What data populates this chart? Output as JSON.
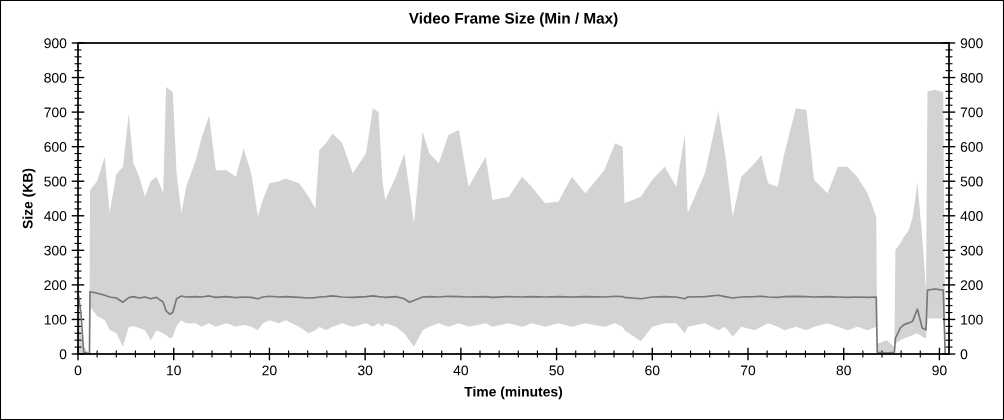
{
  "chart_data": {
    "type": "line",
    "title": "Video Frame Size (Min / Max)",
    "xlabel": "Time (minutes)",
    "ylabel": "Size (KB)",
    "x": [
      0.0,
      0.3,
      0.6,
      1.2,
      1.25,
      2.0,
      2.8,
      3.3,
      4.0,
      4.7,
      5.3,
      5.8,
      6.4,
      7.0,
      7.6,
      8.2,
      8.9,
      9.2,
      9.6,
      9.9,
      10.3,
      10.8,
      11.3,
      12.3,
      12.9,
      13.7,
      14.4,
      15.5,
      16.5,
      17.3,
      18.1,
      18.8,
      19.3,
      20.0,
      21.0,
      21.7,
      23.1,
      24.1,
      24.8,
      25.2,
      25.9,
      26.6,
      27.6,
      28.7,
      30.1,
      30.8,
      31.4,
      31.8,
      32.1,
      33.2,
      34.1,
      34.6,
      35.1,
      36.0,
      36.7,
      37.7,
      38.7,
      39.8,
      40.8,
      42.6,
      43.3,
      45.0,
      46.4,
      47.4,
      48.8,
      50.2,
      51.6,
      53.0,
      55.0,
      56.1,
      56.9,
      57.1,
      58.8,
      60.0,
      61.3,
      62.5,
      63.4,
      63.7,
      65.5,
      66.9,
      67.6,
      68.4,
      69.3,
      70.7,
      71.4,
      72.1,
      73.1,
      73.8,
      75.0,
      76.1,
      76.9,
      78.3,
      79.4,
      80.4,
      81.4,
      82.5,
      83.4,
      83.5,
      84.5,
      85.3,
      85.4,
      85.9,
      86.3,
      86.8,
      87.2,
      87.7,
      88.2,
      88.6,
      88.75,
      89.5,
      90.4,
      90.6
    ],
    "series": [
      {
        "color": "#787878",
        "values": [
          178,
          120,
          5,
          0,
          180,
          176,
          170,
          165,
          162,
          150,
          163,
          166,
          162,
          165,
          160,
          164,
          150,
          125,
          115,
          120,
          160,
          168,
          165,
          166,
          165,
          168,
          164,
          166,
          163,
          165,
          164,
          160,
          165,
          167,
          165,
          166,
          164,
          162,
          163,
          165,
          166,
          168,
          165,
          164,
          166,
          168,
          166,
          165,
          164,
          166,
          160,
          150,
          155,
          165,
          166,
          165,
          167,
          166,
          165,
          166,
          164,
          166,
          165,
          166,
          165,
          166,
          165,
          166,
          165,
          167,
          166,
          164,
          160,
          165,
          166,
          165,
          160,
          165,
          166,
          170,
          166,
          162,
          165,
          166,
          167,
          165,
          164,
          166,
          167,
          166,
          165,
          166,
          165,
          164,
          165,
          164,
          165,
          5,
          3,
          5,
          45,
          75,
          85,
          90,
          95,
          130,
          75,
          70,
          185,
          188,
          185,
          0
        ],
        "lower": [
          0,
          0,
          0,
          0,
          137,
          110,
          98,
          70,
          60,
          21,
          78,
          80,
          75,
          69,
          40,
          69,
          60,
          55,
          45,
          50,
          80,
          98,
          89,
          89,
          79,
          89,
          79,
          89,
          79,
          85,
          79,
          69,
          89,
          98,
          89,
          98,
          79,
          60,
          69,
          79,
          69,
          79,
          89,
          79,
          89,
          79,
          89,
          79,
          89,
          79,
          59,
          40,
          21,
          69,
          79,
          89,
          79,
          89,
          79,
          89,
          79,
          89,
          79,
          89,
          79,
          89,
          79,
          89,
          79,
          89,
          79,
          69,
          37,
          79,
          89,
          89,
          60,
          79,
          89,
          69,
          79,
          50,
          79,
          69,
          79,
          89,
          79,
          69,
          79,
          69,
          79,
          89,
          79,
          69,
          79,
          69,
          79,
          0,
          0,
          0,
          30,
          40,
          45,
          50,
          55,
          60,
          50,
          45,
          103,
          103,
          103,
          0
        ],
        "upper": [
          195,
          60,
          20,
          0,
          474,
          500,
          571,
          408,
          520,
          542,
          696,
          552,
          513,
          455,
          500,
          513,
          466,
          773,
          765,
          759,
          523,
          408,
          484,
          561,
          624,
          691,
          532,
          532,
          513,
          595,
          523,
          397,
          446,
          494,
          500,
          508,
          494,
          455,
          421,
          590,
          610,
          638,
          610,
          523,
          581,
          711,
          700,
          504,
          446,
          513,
          581,
          480,
          378,
          644,
          581,
          552,
          634,
          648,
          484,
          571,
          446,
          455,
          513,
          484,
          436,
          441,
          513,
          465,
          532,
          610,
          600,
          436,
          455,
          504,
          542,
          484,
          634,
          408,
          523,
          702,
          581,
          397,
          513,
          552,
          576,
          494,
          484,
          581,
          711,
          706,
          504,
          465,
          542,
          542,
          513,
          465,
          397,
          30,
          40,
          20,
          301,
          320,
          339,
          358,
          396,
          494,
          339,
          185,
          759,
          765,
          759,
          0
        ]
      }
    ],
    "xlim": [
      0,
      91
    ],
    "xticks": [
      0,
      {
        "value": 2,
        "label": null
      },
      {
        "value": 4,
        "label": null
      },
      {
        "value": 6,
        "label": null
      },
      {
        "value": 8,
        "label": null
      },
      10,
      {
        "value": 12,
        "label": null
      },
      {
        "value": 14,
        "label": null
      },
      {
        "value": 16,
        "label": null
      },
      {
        "value": 18,
        "label": null
      },
      20,
      {
        "value": 22,
        "label": null
      },
      {
        "value": 24,
        "label": null
      },
      {
        "value": 26,
        "label": null
      },
      {
        "value": 28,
        "label": null
      },
      30,
      {
        "value": 32,
        "label": null
      },
      {
        "value": 34,
        "label": null
      },
      {
        "value": 36,
        "label": null
      },
      {
        "value": 38,
        "label": null
      },
      40,
      {
        "value": 42,
        "label": null
      },
      {
        "value": 44,
        "label": null
      },
      {
        "value": 46,
        "label": null
      },
      {
        "value": 48,
        "label": null
      },
      50,
      {
        "value": 52,
        "label": null
      },
      {
        "value": 54,
        "label": null
      },
      {
        "value": 56,
        "label": null
      },
      {
        "value": 58,
        "label": null
      },
      60,
      {
        "value": 62,
        "label": null
      },
      {
        "value": 64,
        "label": null
      },
      {
        "value": 66,
        "label": null
      },
      {
        "value": 68,
        "label": null
      },
      70,
      {
        "value": 72,
        "label": null
      },
      {
        "value": 74,
        "label": null
      },
      {
        "value": 76,
        "label": null
      },
      {
        "value": 78,
        "label": null
      },
      80,
      {
        "value": 82,
        "label": null
      },
      {
        "value": 84,
        "label": null
      },
      {
        "value": 86,
        "label": null
      },
      {
        "value": 88,
        "label": null
      },
      90
    ],
    "ylim": [
      0,
      900
    ],
    "yticks": [
      0,
      {
        "value": 20,
        "label": null
      },
      {
        "value": 40,
        "label": null
      },
      {
        "value": 60,
        "label": null
      },
      {
        "value": 80,
        "label": null
      },
      100,
      {
        "value": 120,
        "label": null
      },
      {
        "value": 140,
        "label": null
      },
      {
        "value": 160,
        "label": null
      },
      {
        "value": 180,
        "label": null
      },
      200,
      {
        "value": 220,
        "label": null
      },
      {
        "value": 240,
        "label": null
      },
      {
        "value": 260,
        "label": null
      },
      {
        "value": 280,
        "label": null
      },
      300,
      {
        "value": 320,
        "label": null
      },
      {
        "value": 340,
        "label": null
      },
      {
        "value": 360,
        "label": null
      },
      {
        "value": 380,
        "label": null
      },
      400,
      {
        "value": 420,
        "label": null
      },
      {
        "value": 440,
        "label": null
      },
      {
        "value": 460,
        "label": null
      },
      {
        "value": 480,
        "label": null
      },
      500,
      {
        "value": 520,
        "label": null
      },
      {
        "value": 540,
        "label": null
      },
      {
        "value": 560,
        "label": null
      },
      {
        "value": 580,
        "label": null
      },
      600,
      {
        "value": 620,
        "label": null
      },
      {
        "value": 640,
        "label": null
      },
      {
        "value": 660,
        "label": null
      },
      {
        "value": 680,
        "label": null
      },
      700,
      {
        "value": 720,
        "label": null
      },
      {
        "value": 740,
        "label": null
      },
      {
        "value": 760,
        "label": null
      },
      {
        "value": 780,
        "label": null
      },
      800,
      {
        "value": 820,
        "label": null
      },
      {
        "value": 840,
        "label": null
      },
      {
        "value": 860,
        "label": null
      },
      {
        "value": 880,
        "label": null
      },
      900
    ],
    "y2lim": [
      0,
      900
    ],
    "y2ticks": [
      0,
      {
        "value": 20,
        "label": null
      },
      {
        "value": 40,
        "label": null
      },
      {
        "value": 60,
        "label": null
      },
      {
        "value": 80,
        "label": null
      },
      100,
      {
        "value": 120,
        "label": null
      },
      {
        "value": 140,
        "label": null
      },
      {
        "value": 160,
        "label": null
      },
      {
        "value": 180,
        "label": null
      },
      200,
      {
        "value": 220,
        "label": null
      },
      {
        "value": 240,
        "label": null
      },
      {
        "value": 260,
        "label": null
      },
      {
        "value": 280,
        "label": null
      },
      300,
      {
        "value": 320,
        "label": null
      },
      {
        "value": 340,
        "label": null
      },
      {
        "value": 360,
        "label": null
      },
      {
        "value": 380,
        "label": null
      },
      400,
      {
        "value": 420,
        "label": null
      },
      {
        "value": 440,
        "label": null
      },
      {
        "value": 460,
        "label": null
      },
      {
        "value": 480,
        "label": null
      },
      500,
      {
        "value": 520,
        "label": null
      },
      {
        "value": 540,
        "label": null
      },
      {
        "value": 560,
        "label": null
      },
      {
        "value": 580,
        "label": null
      },
      600,
      {
        "value": 620,
        "label": null
      },
      {
        "value": 640,
        "label": null
      },
      {
        "value": 660,
        "label": null
      },
      {
        "value": 680,
        "label": null
      },
      700,
      {
        "value": 720,
        "label": null
      },
      {
        "value": 740,
        "label": null
      },
      {
        "value": 760,
        "label": null
      },
      {
        "value": 780,
        "label": null
      },
      800,
      {
        "value": 820,
        "label": null
      },
      {
        "value": 840,
        "label": null
      },
      {
        "value": 860,
        "label": null
      },
      {
        "value": 880,
        "label": null
      },
      900
    ],
    "grid": false
  }
}
